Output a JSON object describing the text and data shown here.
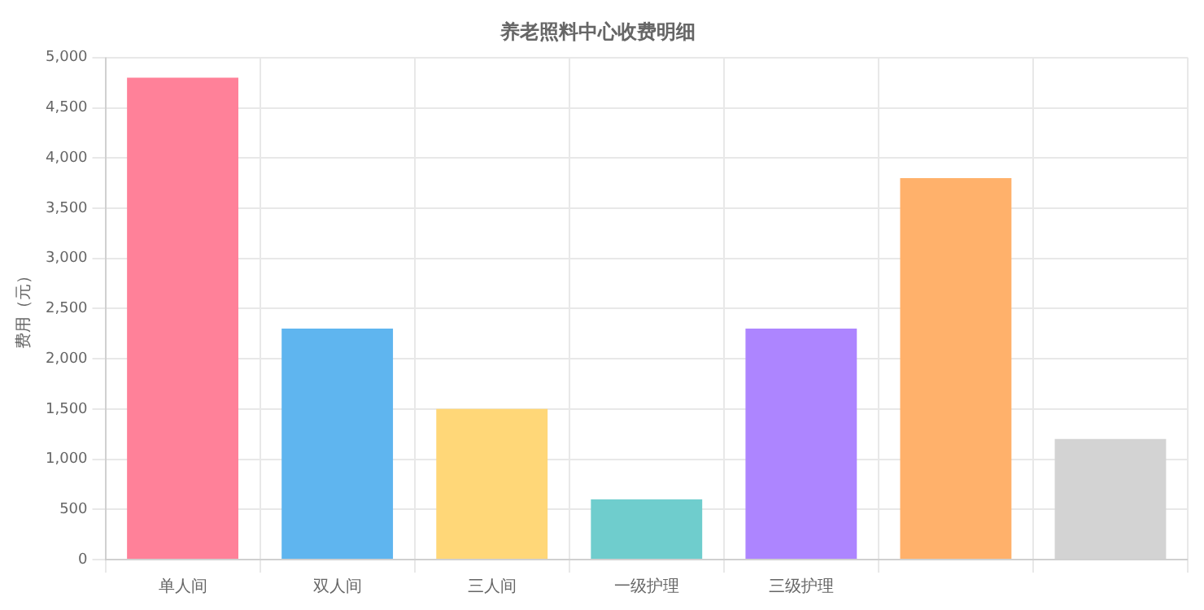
{
  "chart_data": {
    "type": "bar",
    "title": "养老照料中心收费明细",
    "ylabel": "费用（元）",
    "categories": [
      "单人间",
      "双人间",
      "三人间",
      "一级护理",
      "三级护理",
      null,
      null
    ],
    "values": [
      4800,
      2300,
      1500,
      600,
      2300,
      3800,
      1200
    ],
    "colors": [
      "#ff8199",
      "#5fb5ef",
      "#ffd778",
      "#6fcdcd",
      "#ad85ff",
      "#ffb16b",
      "#d3d3d3"
    ],
    "ylim": [
      0,
      5000
    ],
    "yticks": [
      0,
      {
        "value": 500,
        "label": "500"
      },
      {
        "value": 1000,
        "label": "1,000"
      },
      {
        "value": 1500,
        "label": "1,500"
      },
      {
        "value": 2000,
        "label": "2,000"
      },
      {
        "value": 2500,
        "label": "2,500"
      },
      {
        "value": 3000,
        "label": "3,000"
      },
      {
        "value": 3500,
        "label": "3,500"
      },
      {
        "value": 4000,
        "label": "4,000"
      },
      {
        "value": 4500,
        "label": "4,500"
      },
      {
        "value": 5000,
        "label": "5,000"
      }
    ],
    "grid": true,
    "legend": false
  }
}
